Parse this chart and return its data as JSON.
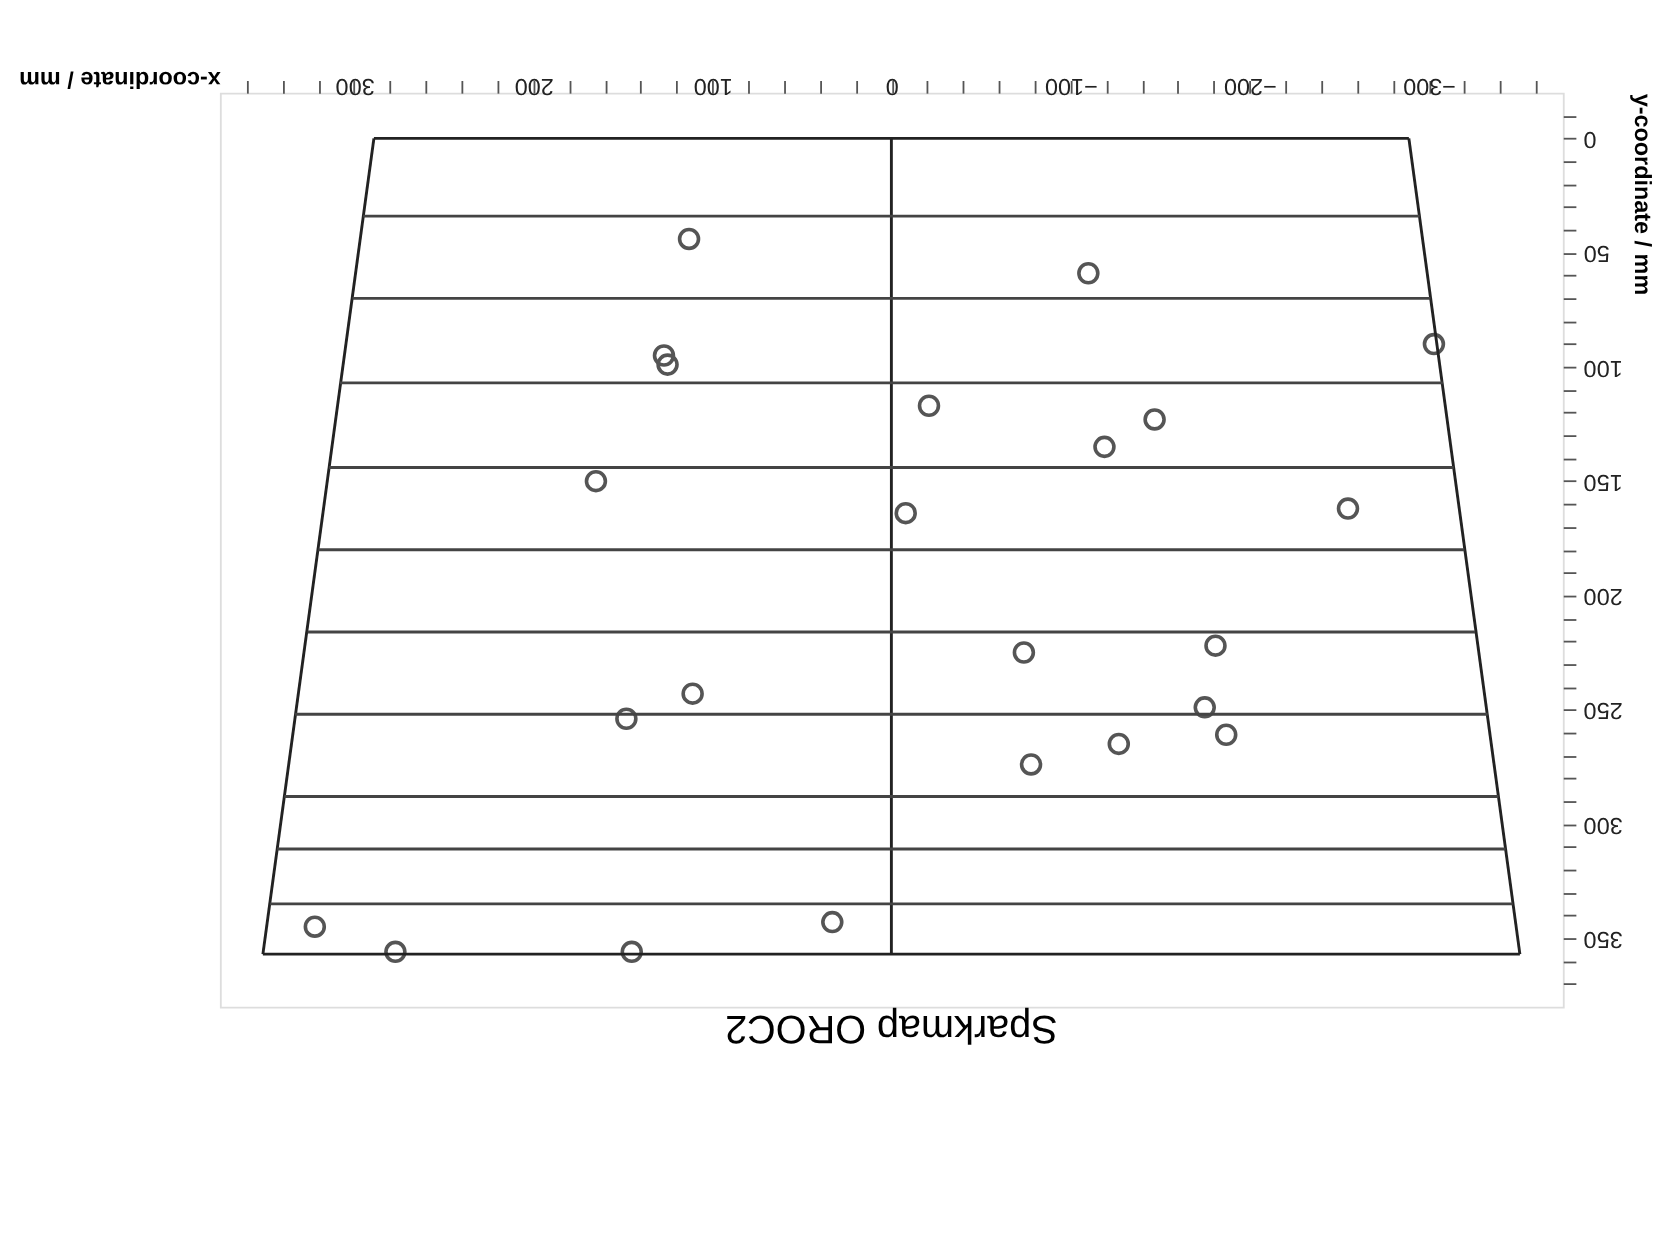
{
  "chart_data": {
    "type": "scatter",
    "title": "Sparkmap OROC2",
    "xlabel": "x-coordinate / mm",
    "ylabel": "y-coordinate / mm",
    "xlim": [
      375,
      -375
    ],
    "ylim": [
      380,
      -20
    ],
    "xticks": [
      300,
      200,
      100,
      0,
      -100,
      -200,
      -300,
      {
        "value": -360,
        "label": null
      },
      {
        "value": -340,
        "label": null
      },
      {
        "value": -320,
        "label": null
      },
      {
        "value": -280,
        "label": null
      },
      {
        "value": -260,
        "label": null
      },
      {
        "value": -240,
        "label": null
      },
      {
        "value": -220,
        "label": null
      },
      {
        "value": -180,
        "label": null
      },
      {
        "value": -160,
        "label": null
      },
      {
        "value": -140,
        "label": null
      },
      {
        "value": -120,
        "label": null
      },
      {
        "value": -80,
        "label": null
      },
      {
        "value": -60,
        "label": null
      },
      {
        "value": -40,
        "label": null
      },
      {
        "value": -20,
        "label": null
      },
      {
        "value": 20,
        "label": null
      },
      {
        "value": 40,
        "label": null
      },
      {
        "value": 60,
        "label": null
      },
      {
        "value": 80,
        "label": null
      },
      {
        "value": 120,
        "label": null
      },
      {
        "value": 140,
        "label": null
      },
      {
        "value": 160,
        "label": null
      },
      {
        "value": 180,
        "label": null
      },
      {
        "value": 220,
        "label": null
      },
      {
        "value": 240,
        "label": null
      },
      {
        "value": 260,
        "label": null
      },
      {
        "value": 280,
        "label": null
      },
      {
        "value": 320,
        "label": null
      },
      {
        "value": 340,
        "label": null
      },
      {
        "value": 360,
        "label": null
      }
    ],
    "yticks": [
      0,
      50,
      100,
      150,
      200,
      250,
      300,
      350,
      {
        "value": -10,
        "label": null
      },
      {
        "value": 10,
        "label": null
      },
      {
        "value": 20,
        "label": null
      },
      {
        "value": 30,
        "label": null
      },
      {
        "value": 40,
        "label": null
      },
      {
        "value": 60,
        "label": null
      },
      {
        "value": 70,
        "label": null
      },
      {
        "value": 80,
        "label": null
      },
      {
        "value": 90,
        "label": null
      },
      {
        "value": 110,
        "label": null
      },
      {
        "value": 120,
        "label": null
      },
      {
        "value": 130,
        "label": null
      },
      {
        "value": 140,
        "label": null
      },
      {
        "value": 160,
        "label": null
      },
      {
        "value": 170,
        "label": null
      },
      {
        "value": 180,
        "label": null
      },
      {
        "value": 190,
        "label": null
      },
      {
        "value": 210,
        "label": null
      },
      {
        "value": 220,
        "label": null
      },
      {
        "value": 230,
        "label": null
      },
      {
        "value": 240,
        "label": null
      },
      {
        "value": 260,
        "label": null
      },
      {
        "value": 270,
        "label": null
      },
      {
        "value": 280,
        "label": null
      },
      {
        "value": 290,
        "label": null
      },
      {
        "value": 310,
        "label": null
      },
      {
        "value": 320,
        "label": null
      },
      {
        "value": 330,
        "label": null
      },
      {
        "value": 340,
        "label": null
      },
      {
        "value": 360,
        "label": null
      },
      {
        "value": 370,
        "label": null
      }
    ],
    "grid": false,
    "series": [
      {
        "marker": "circle",
        "color": "#555555",
        "x": [
          113,
          127,
          125,
          -21,
          165,
          -8,
          111,
          148,
          33,
          322,
          277,
          145,
          -110,
          -303,
          -147,
          -119,
          -255,
          -74,
          -181,
          -175,
          -187,
          -127,
          -78
        ],
        "values": [
          44,
          95,
          99,
          117,
          150,
          164,
          243,
          254,
          343,
          345,
          356,
          356,
          59,
          90,
          123,
          135,
          162,
          225,
          222,
          249,
          261,
          265,
          274
        ]
      },
      {
        "type": "line",
        "color": "#222222",
        "line_style": "solid",
        "x": [
          289,
          -289
        ],
        "values": [
          0,
          0
        ]
      },
      {
        "type": "line",
        "color": "#222222",
        "line_style": "solid",
        "x": [
          -289,
          -351
        ],
        "values": [
          0,
          357
        ]
      },
      {
        "type": "line",
        "color": "#222222",
        "line_style": "solid",
        "x": [
          -351,
          351
        ],
        "values": [
          357,
          357
        ]
      },
      {
        "type": "line",
        "color": "#222222",
        "line_style": "solid",
        "x": [
          351,
          289
        ],
        "values": [
          357,
          0
        ]
      },
      {
        "type": "line",
        "color": "#222222",
        "line_style": "solid",
        "x": [
          0,
          0
        ],
        "values": [
          0,
          357
        ]
      },
      {
        "type": "line",
        "color": "#444444",
        "line_style": "solid",
        "x": [
          295,
          -295
        ],
        "values": [
          34,
          34
        ]
      },
      {
        "type": "line",
        "color": "#444444",
        "line_style": "solid",
        "x": [
          301,
          -301
        ],
        "values": [
          70,
          70
        ]
      },
      {
        "type": "line",
        "color": "#444444",
        "line_style": "solid",
        "x": [
          308,
          -308
        ],
        "values": [
          107,
          107
        ]
      },
      {
        "type": "line",
        "color": "#444444",
        "line_style": "solid",
        "x": [
          314,
          -314
        ],
        "values": [
          144,
          144
        ]
      },
      {
        "type": "line",
        "color": "#444444",
        "line_style": "solid",
        "x": [
          320,
          -320
        ],
        "values": [
          180,
          180
        ]
      },
      {
        "type": "line",
        "color": "#444444",
        "line_style": "solid",
        "x": [
          326,
          -326
        ],
        "values": [
          216,
          216
        ]
      },
      {
        "type": "line",
        "color": "#444444",
        "line_style": "solid",
        "x": [
          333,
          -333
        ],
        "values": [
          252,
          252
        ]
      },
      {
        "type": "line",
        "color": "#444444",
        "line_style": "solid",
        "x": [
          339,
          -339
        ],
        "values": [
          288,
          288
        ]
      },
      {
        "type": "line",
        "color": "#444444",
        "line_style": "solid",
        "x": [
          343,
          -343
        ],
        "values": [
          311,
          311
        ]
      },
      {
        "type": "line",
        "color": "#444444",
        "line_style": "solid",
        "x": [
          347,
          -347
        ],
        "values": [
          335,
          335
        ]
      }
    ]
  }
}
